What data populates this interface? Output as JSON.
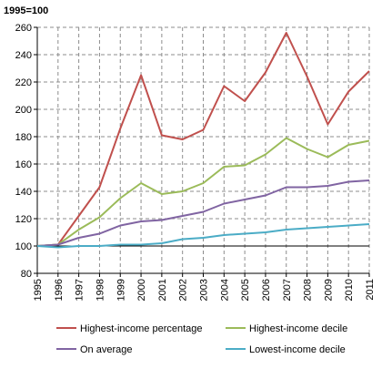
{
  "chart_data": {
    "type": "line",
    "title": "",
    "unit_label": "1995=100",
    "xlabel": "",
    "ylabel": "",
    "categories": [
      "1995",
      "1996",
      "1997",
      "1998",
      "1999",
      "2000",
      "2001",
      "2002",
      "2003",
      "2004",
      "2005",
      "2006",
      "2007",
      "2008",
      "2009",
      "2010",
      "2011"
    ],
    "ylim": [
      80,
      260
    ],
    "yticks": [
      80,
      100,
      120,
      140,
      160,
      180,
      200,
      220,
      240,
      260
    ],
    "reference_line": 100,
    "grid": "dashed vertical and horizontal",
    "legend_position": "bottom",
    "series": [
      {
        "name": "Highest-income percentage",
        "color": "#c0504d",
        "values": [
          100,
          101,
          122,
          143,
          186,
          225,
          181,
          178,
          185,
          217,
          206,
          227,
          256,
          224,
          189,
          213,
          228
        ]
      },
      {
        "name": "Highest-income decile",
        "color": "#9bbb59",
        "values": [
          100,
          101,
          112,
          121,
          135,
          146,
          138,
          140,
          146,
          158,
          159,
          167,
          179,
          171,
          165,
          174,
          177
        ]
      },
      {
        "name": "On average",
        "color": "#8064a2",
        "values": [
          100,
          101,
          106,
          109,
          115,
          118,
          119,
          122,
          125,
          131,
          134,
          137,
          143,
          143,
          144,
          147,
          148
        ]
      },
      {
        "name": "Lowest-income decile",
        "color": "#4bacc6",
        "values": [
          100,
          99,
          100,
          100,
          101,
          101,
          102,
          105,
          106,
          108,
          109,
          110,
          112,
          113,
          114,
          115,
          116
        ]
      }
    ]
  }
}
